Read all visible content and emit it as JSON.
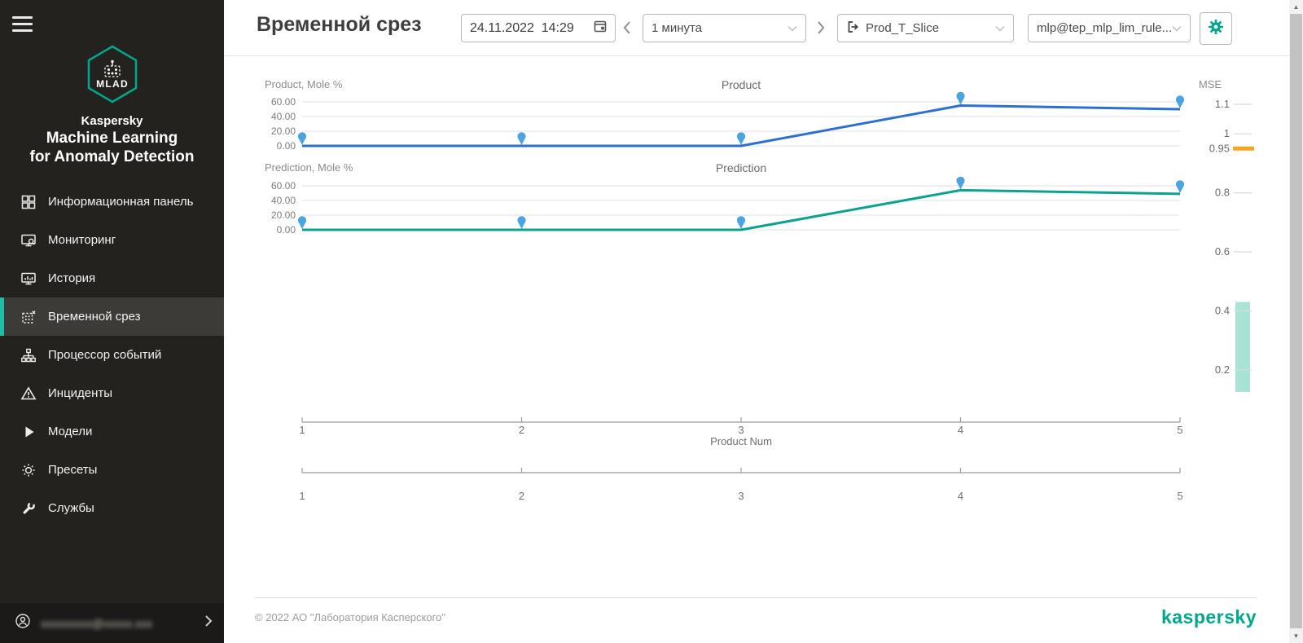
{
  "colors": {
    "accent": "#00a88e",
    "active_indicator": "#1ebfa7",
    "sidebar_bg": "#23221f"
  },
  "sidebar": {
    "logo_badge": "MLAD",
    "brand": "Kaspersky",
    "product_line1": "Machine Learning",
    "product_line2": "for Anomaly Detection",
    "items": [
      {
        "label": "Информационная панель",
        "icon": "dashboard-icon",
        "active": false
      },
      {
        "label": "Мониторинг",
        "icon": "monitoring-icon",
        "active": false
      },
      {
        "label": "История",
        "icon": "history-icon",
        "active": false
      },
      {
        "label": "Временной срез",
        "icon": "time-slice-icon",
        "active": true
      },
      {
        "label": "Процессор событий",
        "icon": "event-processor-icon",
        "active": false
      },
      {
        "label": "Инциденты",
        "icon": "incidents-icon",
        "active": false
      },
      {
        "label": "Модели",
        "icon": "models-icon",
        "active": false
      },
      {
        "label": "Пресеты",
        "icon": "presets-icon",
        "active": false
      },
      {
        "label": "Службы",
        "icon": "services-icon",
        "active": false
      }
    ],
    "user": {
      "email_masked": "xxxxxxxxx@xxxxx.xxx"
    }
  },
  "header": {
    "title": "Временной срез",
    "datetime": "24.11.2022  14:29",
    "interval": "1 минута",
    "slice": "Prod_T_Slice",
    "model": "mlp@tep_mlp_lim_rule..."
  },
  "footer": {
    "copyright": "© 2022 АО \"Лаборатория Касперского\"",
    "brand": "kaspersky"
  },
  "chart_data": {
    "type": "line",
    "x": [
      1,
      2,
      3,
      4,
      5
    ],
    "xlabel": "Product Num",
    "marker_color": "#4aa3e2",
    "grid": true,
    "panels": [
      {
        "title": "Product",
        "ylabel": "Product, Mole %",
        "yticks": [
          "60.00",
          "40.00",
          "20.00",
          "0.00"
        ],
        "ymax": 60,
        "series": [
          {
            "name": "Product",
            "color": "#2e6fd4",
            "values": [
              0,
              0,
              0,
              55,
              50
            ]
          }
        ]
      },
      {
        "title": "Prediction",
        "ylabel": "Prediction, Mole %",
        "yticks": [
          "60.00",
          "40.00",
          "20.00",
          "0.00"
        ],
        "ymax": 60,
        "series": [
          {
            "name": "Prediction",
            "color": "#0ba390",
            "values": [
              0,
              0,
              0,
              54,
              49
            ]
          }
        ]
      }
    ],
    "mse_axis": {
      "title": "MSE",
      "axis_range": [
        1.1,
        0.2
      ],
      "ticks": [
        "1.1",
        "1",
        "0.95",
        "0.8",
        "0.6",
        "0.4",
        "0.2"
      ],
      "current_value": "0.95",
      "current_color": "#f5a623",
      "band_range": [
        0.125,
        0.43
      ],
      "band_color": "#a7e4d6"
    }
  }
}
